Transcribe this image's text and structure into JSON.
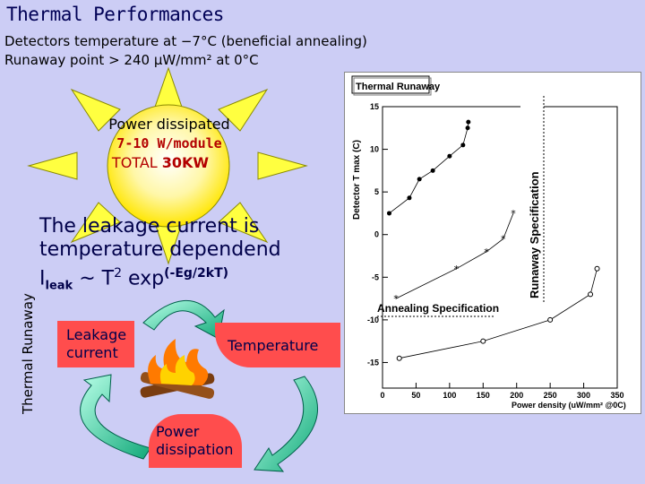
{
  "slide": {
    "title": "Thermal Performances",
    "subtitle_line1": "Detectors temperature at −7°C (beneficial annealing)",
    "subtitle_line2": "Runaway point > 240 µW/mm² at 0°C"
  },
  "sun": {
    "line1": "Power dissipated",
    "line2": "7-10 W/module",
    "line3_prefix": "TOTAL ",
    "line3_value": "30KW"
  },
  "leakage_text": {
    "line1": "The leakage current is",
    "line2": "temperature dependend",
    "formula_i": "I",
    "formula_sub": "leak",
    "formula_mid": " ~ T",
    "formula_sup2": "2",
    "formula_exp": " exp",
    "formula_sup_exp": "(-Eg/2kT)"
  },
  "cycle": {
    "vertical_label": "Thermal Runaway",
    "leakage_line1": "Leakage",
    "leakage_line2": "current",
    "temperature": "Temperature",
    "power_line1": "Power",
    "power_line2": "dissipation"
  },
  "chart_data": {
    "type": "scatter",
    "title": "Thermal Runaway",
    "xlabel": "Power density (uW/mm² @0C)",
    "ylabel": "Detector T max (C)",
    "xlim": [
      0,
      350
    ],
    "ylim": [
      -18,
      15
    ],
    "xticks": [
      "0",
      "50",
      "100",
      "150",
      "200",
      "250",
      "300",
      "350"
    ],
    "yticks": [
      "15",
      "10",
      "5",
      "0",
      "-5",
      "-10",
      "-15"
    ],
    "annotations": {
      "runaway_spec": "Runaway Specification",
      "annealing_spec": "Annealing Specification"
    },
    "series": [
      {
        "marker": "dot",
        "points": [
          [
            10,
            2.5
          ],
          [
            40,
            4.3
          ],
          [
            55,
            6.5
          ],
          [
            75,
            7.5
          ],
          [
            100,
            9.2
          ],
          [
            120,
            10.5
          ],
          [
            127,
            12.5
          ],
          [
            128,
            13.2
          ]
        ]
      },
      {
        "marker": "star",
        "points": [
          [
            20,
            -7.5
          ],
          [
            110,
            -4
          ],
          [
            155,
            -2
          ],
          [
            180,
            -0.5
          ],
          [
            195,
            2.5
          ]
        ]
      },
      {
        "marker": "circle",
        "points": [
          [
            25,
            -14.5
          ],
          [
            150,
            -12.5
          ],
          [
            250,
            -10
          ],
          [
            310,
            -7
          ],
          [
            320,
            -4
          ]
        ]
      }
    ]
  }
}
